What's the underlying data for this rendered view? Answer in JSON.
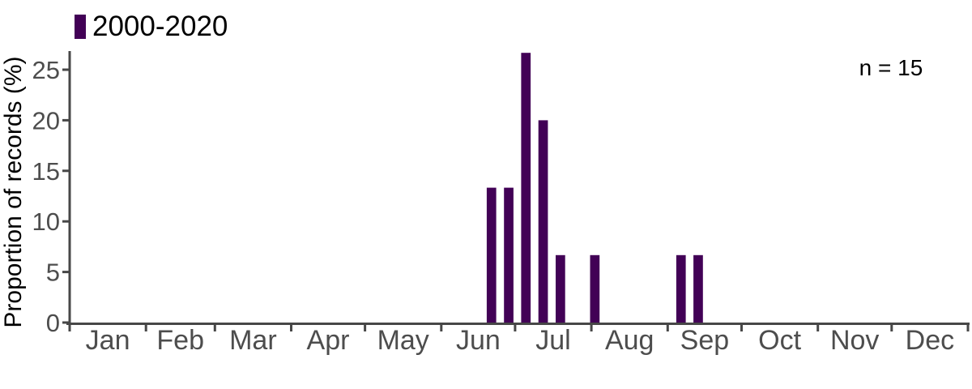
{
  "colors": {
    "bar": "#420156",
    "axis": "#474747",
    "axis_text": "#4d4d4d",
    "text": "#000000"
  },
  "chart_data": {
    "type": "bar",
    "title": "",
    "xlabel": "",
    "ylabel": "Proportion of records (%)",
    "legend": [
      "2000-2020"
    ],
    "legend_position": "top-left",
    "annotation": "n = 15",
    "n": 15,
    "grid": false,
    "ylim": [
      0,
      27
    ],
    "yticks": [
      0,
      5,
      10,
      15,
      20,
      25
    ],
    "x_axis_months": [
      "Jan",
      "Feb",
      "Mar",
      "Apr",
      "May",
      "Jun",
      "Jul",
      "Aug",
      "Sep",
      "Oct",
      "Nov",
      "Dec"
    ],
    "month_lengths_days": [
      31,
      28,
      31,
      30,
      31,
      30,
      31,
      31,
      30,
      31,
      30,
      31
    ],
    "bin_width_days": 7,
    "bars": [
      {
        "week_of_year": 25,
        "value_pct": 13.33
      },
      {
        "week_of_year": 26,
        "value_pct": 13.33
      },
      {
        "week_of_year": 27,
        "value_pct": 26.67
      },
      {
        "week_of_year": 28,
        "value_pct": 20
      },
      {
        "week_of_year": 29,
        "value_pct": 6.67
      },
      {
        "week_of_year": 31,
        "value_pct": 6.67
      },
      {
        "week_of_year": 36,
        "value_pct": 6.67
      },
      {
        "week_of_year": 37,
        "value_pct": 6.67
      }
    ]
  }
}
